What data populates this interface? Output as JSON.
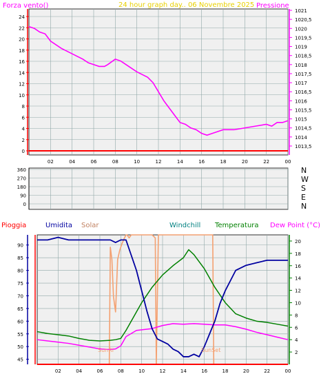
{
  "colors": {
    "background": "#ffffff",
    "plot_bg": "#f0f0f0",
    "grid": "#8fa8a8",
    "pressure": "#ff00ff",
    "wind": "#ff0000",
    "title": "#e8d000",
    "humidity": "#0000a0",
    "solar": "#f4a070",
    "windchill": "#008080",
    "temperature": "#008000",
    "dewpoint": "#ff00ff",
    "rain": "#ff0000",
    "sun_text": "#f4a070"
  },
  "header": {
    "left_label": "Forza vento()",
    "title": "24 hour graph day.. 06 Novembre 2025",
    "right_label": "Pressione"
  },
  "mid_header": {
    "rain": "Pioggia",
    "humidity": "Umidita",
    "solar": "Solar",
    "windchill": "Windchill",
    "temperature": "Temperatura",
    "dewpoint": "Dew Point (°C)"
  },
  "sun_labels": {
    "sunrise": "SunRi",
    "sunset": "SunSet"
  },
  "chart_data": [
    {
      "type": "line",
      "name": "pressure-wind",
      "x_ticks": [
        "02",
        "04",
        "06",
        "08",
        "10",
        "12",
        "14",
        "16",
        "18",
        "20",
        "22",
        "00"
      ],
      "left_axis": {
        "ticks": [
          0,
          2,
          4,
          6,
          8,
          10,
          12,
          14,
          16,
          18,
          20,
          22,
          24
        ]
      },
      "right_axis": {
        "ticks": [
          "1013,5",
          "1014",
          "1014,5",
          "1015",
          "1015,5",
          "1016",
          "1016,5",
          "1017",
          "1017,5",
          "1018",
          "1018,5",
          "1019",
          "1019,5",
          "1020",
          "1020,5",
          "1021"
        ],
        "ylim": [
          1013.5,
          1021
        ]
      },
      "pressure": {
        "x": [
          0,
          0.5,
          1,
          1.5,
          2,
          3,
          4,
          5,
          5.5,
          6,
          6.5,
          7,
          7.3,
          8,
          8.5,
          9,
          9.5,
          10,
          11,
          11.5,
          12,
          12.5,
          13,
          13.5,
          14,
          14.5,
          15,
          15.5,
          16,
          16.5,
          17,
          17.5,
          18,
          19,
          20,
          21,
          22,
          22.5,
          23,
          23.5,
          24
        ],
        "y": [
          1020.1,
          1020.0,
          1019.8,
          1019.7,
          1019.3,
          1018.9,
          1018.6,
          1018.3,
          1018.1,
          1018.0,
          1017.9,
          1017.9,
          1018.0,
          1018.3,
          1018.2,
          1018.0,
          1017.8,
          1017.6,
          1017.3,
          1017.0,
          1016.5,
          1016.0,
          1015.6,
          1015.2,
          1014.8,
          1014.7,
          1014.5,
          1014.4,
          1014.2,
          1014.1,
          1014.2,
          1014.3,
          1014.4,
          1014.4,
          1014.5,
          1014.6,
          1014.7,
          1014.6,
          1014.8,
          1014.8,
          1014.9
        ]
      },
      "wind": {
        "x": [
          0,
          24
        ],
        "y": [
          0,
          0
        ]
      }
    },
    {
      "type": "scatter",
      "name": "wind-direction",
      "left_axis": {
        "ticks": [
          0,
          90,
          180,
          270,
          360
        ]
      },
      "right_labels": [
        "N",
        "W",
        "S",
        "E",
        "N"
      ]
    },
    {
      "type": "line",
      "name": "temperature-humidity",
      "x_ticks": [
        "02",
        "04",
        "06",
        "08",
        "10",
        "12",
        "14",
        "16",
        "18",
        "20",
        "22",
        "00"
      ],
      "left_axis": {
        "ticks": [
          45,
          50,
          55,
          60,
          65,
          70,
          75,
          80,
          85,
          90
        ],
        "ylim": [
          43,
          94
        ]
      },
      "right_axis": {
        "ticks": [
          2,
          4,
          6,
          8,
          10,
          12,
          14,
          16,
          18,
          20
        ],
        "ylim": [
          0,
          21
        ]
      },
      "humidity": {
        "x": [
          0,
          1,
          2,
          3,
          4,
          5,
          6,
          7,
          7.5,
          8,
          8.5,
          9,
          9.5,
          10,
          10.5,
          11,
          11.5,
          12,
          12.5,
          13,
          13.5,
          14,
          14.5,
          15,
          15.5,
          16,
          16.5,
          17,
          17.5,
          18,
          18.5,
          19,
          20,
          21,
          22,
          23,
          24
        ],
        "y": [
          92,
          92,
          93,
          92,
          92,
          92,
          92,
          92,
          91,
          92,
          92,
          86,
          80,
          72,
          64,
          57,
          53,
          52,
          51,
          49,
          48,
          46,
          46,
          47,
          46,
          50,
          55,
          60,
          67,
          72,
          76,
          80,
          82,
          83,
          84,
          84,
          84
        ]
      },
      "temperature": {
        "x": [
          0,
          1,
          2,
          3,
          4,
          5,
          6,
          7,
          7.5,
          8,
          8.5,
          9,
          9.5,
          10,
          11,
          12,
          13,
          14,
          14.5,
          15,
          16,
          17,
          18,
          19,
          20,
          21,
          22,
          23,
          24
        ],
        "y": [
          5.3,
          5.0,
          4.8,
          4.6,
          4.2,
          3.9,
          3.8,
          3.9,
          4.0,
          4.2,
          5.5,
          7.0,
          8.5,
          10.0,
          12.5,
          14.5,
          16.0,
          17.3,
          18.6,
          17.8,
          15.5,
          12.5,
          10.0,
          8.2,
          7.5,
          7.0,
          6.8,
          6.5,
          6.2
        ]
      },
      "dewpoint": {
        "x": [
          0,
          1,
          2,
          3,
          4,
          5,
          6,
          7,
          7.5,
          8,
          8.5,
          9,
          9.5,
          10,
          11,
          12,
          13,
          14,
          15,
          16,
          17,
          18,
          19,
          20,
          21,
          22,
          23,
          24
        ],
        "y": [
          4.0,
          3.8,
          3.6,
          3.4,
          3.1,
          2.8,
          2.5,
          2.4,
          2.5,
          3.0,
          4.5,
          5.0,
          5.5,
          5.6,
          5.8,
          6.3,
          6.6,
          6.5,
          6.6,
          6.5,
          6.4,
          6.4,
          6.1,
          5.7,
          5.2,
          4.8,
          4.4,
          4.0
        ]
      },
      "solar": {
        "x": [
          6.9,
          7.0,
          7.15,
          7.3,
          7.5,
          7.7,
          7.9,
          8.1,
          8.3,
          8.5,
          8.6,
          8.8,
          9.0,
          11.0,
          11.3,
          11.4,
          11.6,
          13.0,
          16.0,
          16.8,
          16.9
        ],
        "y": [
          0,
          19.0,
          17.0,
          11.0,
          8.5,
          17.0,
          18.5,
          19.5,
          20.3,
          21.0,
          21.0,
          20.5,
          21.0,
          21.0,
          20.5,
          0,
          21.0,
          21.0,
          21.0,
          21.0,
          0
        ]
      },
      "rain": {
        "x": [
          0,
          24
        ],
        "y": [
          0,
          0
        ]
      }
    }
  ]
}
